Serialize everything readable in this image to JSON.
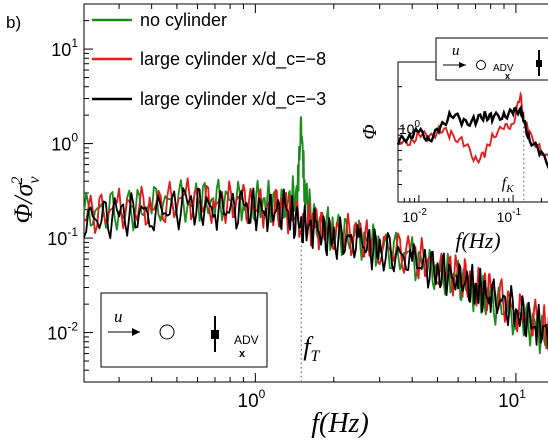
{
  "panel_label": "b)",
  "chart_data": {
    "type": "line",
    "xlabel": "f(Hz)",
    "ylabel": "Φ/σ_v^2",
    "x_scale": "log",
    "y_scale": "log",
    "xlim": [
      0.22,
      14
    ],
    "ylim": [
      0.003,
      30
    ],
    "x_tick_labels": [
      {
        "base": "10",
        "exp": "0",
        "value": 1
      },
      {
        "base": "10",
        "exp": "1",
        "value": 10
      }
    ],
    "y_tick_labels": [
      {
        "base": "10",
        "exp": "1",
        "value": 10
      },
      {
        "base": "10",
        "exp": "0",
        "value": 1
      },
      {
        "base": "10",
        "exp": "-1",
        "value": 0.1
      },
      {
        "base": "10",
        "exp": "-2",
        "value": 0.01
      }
    ],
    "grid": false,
    "legend_position": "top-left",
    "series": [
      {
        "name": "no cylinder",
        "color": "#1e8a1e",
        "x": [
          0.22,
          0.3,
          0.4,
          0.55,
          0.7,
          0.9,
          1.1,
          1.3,
          1.45,
          1.5,
          1.55,
          1.7,
          2,
          2.5,
          3,
          4,
          5,
          6,
          7,
          8,
          10,
          12,
          14
        ],
        "y": [
          0.18,
          0.2,
          0.22,
          0.25,
          0.25,
          0.24,
          0.24,
          0.22,
          0.3,
          1.6,
          0.28,
          0.15,
          0.12,
          0.095,
          0.08,
          0.06,
          0.045,
          0.035,
          0.028,
          0.022,
          0.015,
          0.011,
          0.008
        ]
      },
      {
        "name": "large cylinder x/d_c=−8",
        "color": "#e31a1c",
        "x": [
          0.22,
          0.3,
          0.4,
          0.55,
          0.7,
          0.9,
          1.1,
          1.3,
          1.5,
          1.7,
          2,
          2.5,
          3,
          4,
          5,
          6,
          7,
          8,
          10,
          12,
          14
        ],
        "y": [
          0.18,
          0.2,
          0.22,
          0.25,
          0.24,
          0.23,
          0.22,
          0.2,
          0.16,
          0.13,
          0.12,
          0.1,
          0.085,
          0.065,
          0.05,
          0.04,
          0.033,
          0.027,
          0.018,
          0.013,
          0.01
        ]
      },
      {
        "name": "large cylinder x/d_c=−3",
        "color": "#000000",
        "x": [
          0.22,
          0.3,
          0.4,
          0.55,
          0.7,
          0.9,
          1.1,
          1.3,
          1.5,
          1.7,
          2,
          2.5,
          3,
          4,
          5,
          6,
          7,
          8,
          10,
          12,
          14
        ],
        "y": [
          0.16,
          0.17,
          0.19,
          0.22,
          0.21,
          0.2,
          0.2,
          0.19,
          0.14,
          0.12,
          0.1,
          0.09,
          0.075,
          0.058,
          0.045,
          0.036,
          0.03,
          0.024,
          0.017,
          0.012,
          0.009
        ]
      }
    ],
    "annotations": [
      {
        "label_base": "f",
        "label_sub": "T",
        "x": 1.5,
        "style": "dotted vertical line"
      }
    ]
  },
  "inset_chart": {
    "ylabel": "Φ",
    "xlabel": "f(Hz)",
    "x_scale": "log",
    "y_scale": "log",
    "xlim": [
      0.006,
      0.3
    ],
    "ylim": [
      0.3,
      3
    ],
    "x_tick_labels": [
      {
        "base": "10",
        "exp": "-2",
        "value": 0.01
      },
      {
        "base": "10",
        "exp": "-1",
        "value": 0.1
      }
    ],
    "y_tick_labels": [
      {
        "base": "10",
        "exp": "0",
        "value": 1
      }
    ],
    "annotations": [
      {
        "label_base": "f",
        "label_sub": "K",
        "x": 0.13,
        "style": "dotted vertical line"
      }
    ],
    "series": [
      {
        "color": "#e31a1c",
        "x": [
          0.006,
          0.008,
          0.01,
          0.013,
          0.017,
          0.022,
          0.03,
          0.04,
          0.05,
          0.06,
          0.08,
          0.1,
          0.12,
          0.13,
          0.15,
          0.2,
          0.3
        ],
        "y": [
          0.85,
          0.75,
          0.95,
          0.85,
          1.0,
          0.9,
          0.8,
          0.6,
          0.65,
          0.9,
          1.0,
          1.1,
          1.7,
          1.2,
          0.9,
          0.7,
          0.5
        ]
      },
      {
        "color": "#000000",
        "x": [
          0.006,
          0.008,
          0.01,
          0.013,
          0.017,
          0.022,
          0.03,
          0.04,
          0.05,
          0.06,
          0.08,
          0.1,
          0.12,
          0.13,
          0.15,
          0.2,
          0.3
        ],
        "y": [
          0.8,
          0.9,
          0.95,
          0.85,
          1.0,
          1.3,
          1.1,
          1.15,
          1.25,
          1.2,
          1.25,
          1.3,
          1.4,
          1.1,
          0.85,
          0.65,
          0.45
        ]
      }
    ]
  },
  "schematic_main": {
    "flow_label": "u",
    "probe_label": "ADV",
    "probe_marker": "x"
  },
  "schematic_inset": {
    "flow_label": "u",
    "probe_label": "ADV",
    "probe_marker": "x"
  }
}
